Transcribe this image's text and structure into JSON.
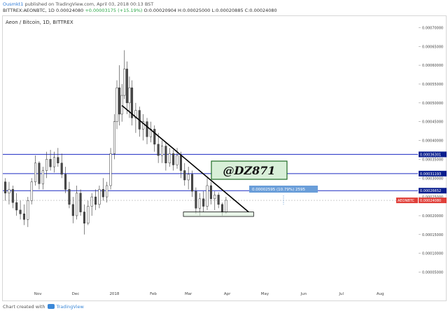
{
  "header": {
    "author": "Ousmkt1",
    "published": "published on TradingView.com, April 03, 2018 00:13 BST",
    "symbol_line": "BITTREX:AEONBTC, 1D",
    "price": "0.00024080",
    "change": "+0.00003175 (+15.19%)",
    "ohlc": "O:0.00020904 H:0.00025000 L:0.00020885 C:0.00024080"
  },
  "footer": {
    "prefix": "Chart created with",
    "brand": "TradingView"
  },
  "colors": {
    "blue_line": "#1d2bc2",
    "candle_up": "#ffffff",
    "candle_down": "#4a4a4a",
    "trend": "#000000",
    "watermark_bg": "#d8efd8",
    "watermark_border": "#1f6b24",
    "badge_blue": "#0a1f8f",
    "badge_red": "#e0403a",
    "measure": "#6a9ed9"
  },
  "chart_data": {
    "type": "candlestick",
    "title": "Aeon / Bitcoin, 1D, BITTREX",
    "x_ticks": [
      "Nov",
      "Dec",
      "2018",
      "Feb",
      "Mar",
      "Apr",
      "May",
      "Jun",
      "Jul",
      "Aug"
    ],
    "y_ticks": [
      "0.00070000",
      "0.00065000",
      "0.00060000",
      "0.00055000",
      "0.00050000",
      "0.00045000",
      "0.00040000",
      "0.00035000",
      "0.00030000",
      "0.00025000",
      "0.00020000",
      "0.00015000",
      "0.00010000",
      "0.00005000"
    ],
    "ylim": [
      1e-05,
      0.000725
    ],
    "horizontal_lines": [
      {
        "value": 0.00036301,
        "label": "0.00036301"
      },
      {
        "value": 0.00031193,
        "label": "0.00031193"
      },
      {
        "value": 0.00026652,
        "label": "0.00026652"
      }
    ],
    "last_price": {
      "value": 0.0002408,
      "symbol": "AEONBTC",
      "label": "0.00024080"
    },
    "measure_label": "0.00002595 (10.79%) 2595",
    "watermark": "@DZ871",
    "trendline": {
      "from": [
        "2018-01-07",
        0.000493
      ],
      "to": [
        "2018-04-18",
        0.00021
      ]
    },
    "support_box": {
      "from": [
        "2018-02-25",
        0.00021
      ],
      "to": [
        "2018-04-22",
        0.000198
      ]
    },
    "candles": [
      {
        "x": "2017-10-06",
        "o": 0.00029,
        "h": 0.0003,
        "l": 0.00024,
        "c": 0.00026
      },
      {
        "x": "2017-10-09",
        "o": 0.00026,
        "h": 0.00029,
        "l": 0.00023,
        "c": 0.00027
      },
      {
        "x": "2017-10-12",
        "o": 0.00027,
        "h": 0.00028,
        "l": 0.00022,
        "c": 0.000235
      },
      {
        "x": "2017-10-15",
        "o": 0.000235,
        "h": 0.00026,
        "l": 0.0002,
        "c": 0.000215
      },
      {
        "x": "2017-10-18",
        "o": 0.000215,
        "h": 0.00024,
        "l": 0.00019,
        "c": 0.000205
      },
      {
        "x": "2017-10-21",
        "o": 0.000205,
        "h": 0.00023,
        "l": 0.000175,
        "c": 0.00019
      },
      {
        "x": "2017-10-24",
        "o": 0.00019,
        "h": 0.00025,
        "l": 0.00017,
        "c": 0.00024
      },
      {
        "x": "2017-10-27",
        "o": 0.00024,
        "h": 0.0003,
        "l": 0.00023,
        "c": 0.00029
      },
      {
        "x": "2017-10-30",
        "o": 0.00029,
        "h": 0.00036,
        "l": 0.00028,
        "c": 0.00034
      },
      {
        "x": "2017-11-02",
        "o": 0.00034,
        "h": 0.000345,
        "l": 0.00027,
        "c": 0.000285
      },
      {
        "x": "2017-11-05",
        "o": 0.000285,
        "h": 0.00033,
        "l": 0.00027,
        "c": 0.00032
      },
      {
        "x": "2017-11-08",
        "o": 0.00032,
        "h": 0.00037,
        "l": 0.0003,
        "c": 0.00035
      },
      {
        "x": "2017-11-11",
        "o": 0.00035,
        "h": 0.000375,
        "l": 0.00032,
        "c": 0.00033
      },
      {
        "x": "2017-11-14",
        "o": 0.00033,
        "h": 0.00037,
        "l": 0.000315,
        "c": 0.000355
      },
      {
        "x": "2017-11-17",
        "o": 0.000355,
        "h": 0.00038,
        "l": 0.00033,
        "c": 0.00034
      },
      {
        "x": "2017-11-20",
        "o": 0.00034,
        "h": 0.000365,
        "l": 0.0003,
        "c": 0.00031
      },
      {
        "x": "2017-11-23",
        "o": 0.00031,
        "h": 0.00033,
        "l": 0.00026,
        "c": 0.00027
      },
      {
        "x": "2017-11-26",
        "o": 0.00027,
        "h": 0.00029,
        "l": 0.00022,
        "c": 0.00023
      },
      {
        "x": "2017-11-29",
        "o": 0.00023,
        "h": 0.00025,
        "l": 0.00018,
        "c": 0.0002
      },
      {
        "x": "2017-12-02",
        "o": 0.0002,
        "h": 0.00028,
        "l": 0.00019,
        "c": 0.00026
      },
      {
        "x": "2017-12-05",
        "o": 0.00026,
        "h": 0.00027,
        "l": 0.0002,
        "c": 0.00021
      },
      {
        "x": "2017-12-08",
        "o": 0.00021,
        "h": 0.00023,
        "l": 0.00015,
        "c": 0.00018
      },
      {
        "x": "2017-12-11",
        "o": 0.00018,
        "h": 0.00024,
        "l": 0.000175,
        "c": 0.000225
      },
      {
        "x": "2017-12-14",
        "o": 0.000225,
        "h": 0.00026,
        "l": 0.0002,
        "c": 0.00025
      },
      {
        "x": "2017-12-17",
        "o": 0.00025,
        "h": 0.00027,
        "l": 0.000215,
        "c": 0.00023
      },
      {
        "x": "2017-12-20",
        "o": 0.00023,
        "h": 0.00028,
        "l": 0.00022,
        "c": 0.00027
      },
      {
        "x": "2017-12-23",
        "o": 0.00027,
        "h": 0.0003,
        "l": 0.00024,
        "c": 0.00025
      },
      {
        "x": "2017-12-26",
        "o": 0.00025,
        "h": 0.00029,
        "l": 0.000235,
        "c": 0.00028
      },
      {
        "x": "2017-12-29",
        "o": 0.00028,
        "h": 0.00038,
        "l": 0.00027,
        "c": 0.000365
      },
      {
        "x": "2018-01-01",
        "o": 0.000365,
        "h": 0.00047,
        "l": 0.00035,
        "c": 0.00045
      },
      {
        "x": "2018-01-03",
        "o": 0.00045,
        "h": 0.00056,
        "l": 0.00043,
        "c": 0.00054
      },
      {
        "x": "2018-01-05",
        "o": 0.00054,
        "h": 0.0006,
        "l": 0.00044,
        "c": 0.00047
      },
      {
        "x": "2018-01-07",
        "o": 0.00047,
        "h": 0.00055,
        "l": 0.00045,
        "c": 0.00052
      },
      {
        "x": "2018-01-09",
        "o": 0.00052,
        "h": 0.00064,
        "l": 0.00051,
        "c": 0.00059
      },
      {
        "x": "2018-01-11",
        "o": 0.00059,
        "h": 0.00061,
        "l": 0.00047,
        "c": 0.0005
      },
      {
        "x": "2018-01-13",
        "o": 0.0005,
        "h": 0.00057,
        "l": 0.00046,
        "c": 0.00054
      },
      {
        "x": "2018-01-15",
        "o": 0.00054,
        "h": 0.00056,
        "l": 0.00044,
        "c": 0.00046
      },
      {
        "x": "2018-01-18",
        "o": 0.00046,
        "h": 0.0005,
        "l": 0.00042,
        "c": 0.00048
      },
      {
        "x": "2018-01-21",
        "o": 0.00048,
        "h": 0.00049,
        "l": 0.00041,
        "c": 0.00043
      },
      {
        "x": "2018-01-24",
        "o": 0.00043,
        "h": 0.00047,
        "l": 0.0004,
        "c": 0.00045
      },
      {
        "x": "2018-01-27",
        "o": 0.00045,
        "h": 0.00046,
        "l": 0.00039,
        "c": 0.00041
      },
      {
        "x": "2018-01-30",
        "o": 0.00041,
        "h": 0.00045,
        "l": 0.000395,
        "c": 0.00043
      },
      {
        "x": "2018-02-02",
        "o": 0.00043,
        "h": 0.00044,
        "l": 0.00037,
        "c": 0.00039
      },
      {
        "x": "2018-02-05",
        "o": 0.00039,
        "h": 0.00042,
        "l": 0.00034,
        "c": 0.00036
      },
      {
        "x": "2018-02-08",
        "o": 0.00036,
        "h": 0.0004,
        "l": 0.00034,
        "c": 0.000385
      },
      {
        "x": "2018-02-11",
        "o": 0.000385,
        "h": 0.000395,
        "l": 0.00032,
        "c": 0.00034
      },
      {
        "x": "2018-02-14",
        "o": 0.00034,
        "h": 0.00038,
        "l": 0.00033,
        "c": 0.000365
      },
      {
        "x": "2018-02-17",
        "o": 0.000365,
        "h": 0.000375,
        "l": 0.00032,
        "c": 0.000335
      },
      {
        "x": "2018-02-20",
        "o": 0.000335,
        "h": 0.00038,
        "l": 0.000325,
        "c": 0.00036
      },
      {
        "x": "2018-02-23",
        "o": 0.00036,
        "h": 0.00037,
        "l": 0.0003,
        "c": 0.00032
      },
      {
        "x": "2018-02-26",
        "o": 0.00032,
        "h": 0.00034,
        "l": 0.00028,
        "c": 0.000295
      },
      {
        "x": "2018-03-01",
        "o": 0.000295,
        "h": 0.00033,
        "l": 0.00027,
        "c": 0.00031
      },
      {
        "x": "2018-03-04",
        "o": 0.00031,
        "h": 0.00032,
        "l": 0.00025,
        "c": 0.000265
      },
      {
        "x": "2018-03-07",
        "o": 0.000265,
        "h": 0.000275,
        "l": 0.000205,
        "c": 0.00022
      },
      {
        "x": "2018-03-10",
        "o": 0.00022,
        "h": 0.00026,
        "l": 0.0002,
        "c": 0.000245
      },
      {
        "x": "2018-03-13",
        "o": 0.000245,
        "h": 0.000265,
        "l": 0.00021,
        "c": 0.000225
      },
      {
        "x": "2018-03-16",
        "o": 0.000225,
        "h": 0.0003,
        "l": 0.000215,
        "c": 0.00028
      },
      {
        "x": "2018-03-19",
        "o": 0.00028,
        "h": 0.00029,
        "l": 0.00023,
        "c": 0.000245
      },
      {
        "x": "2018-03-22",
        "o": 0.000245,
        "h": 0.000265,
        "l": 0.000215,
        "c": 0.000255
      },
      {
        "x": "2018-03-25",
        "o": 0.000255,
        "h": 0.000262,
        "l": 0.00022,
        "c": 0.00023
      },
      {
        "x": "2018-03-28",
        "o": 0.00023,
        "h": 0.000235,
        "l": 0.0002,
        "c": 0.000209
      },
      {
        "x": "2018-03-31",
        "o": 0.000209,
        "h": 0.00025,
        "l": 0.000205,
        "c": 0.000241
      }
    ]
  }
}
